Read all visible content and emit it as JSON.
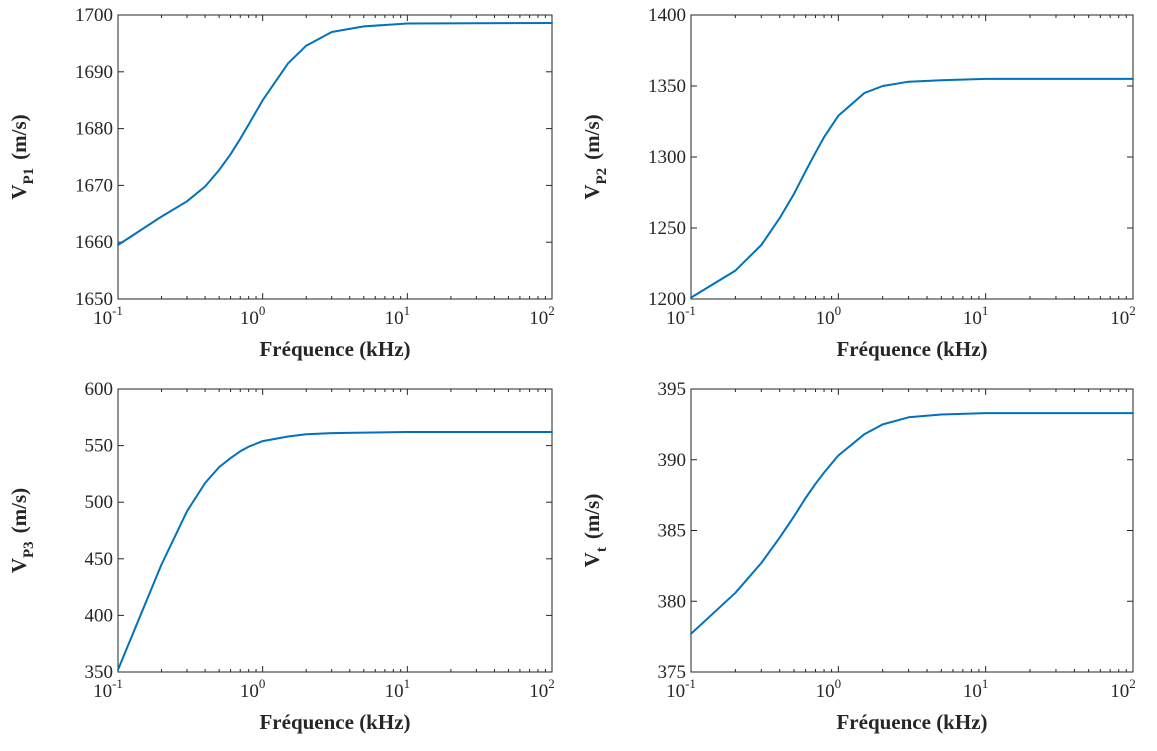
{
  "chart_data": [
    {
      "type": "line",
      "title": "",
      "xlabel": "Fréquence (kHz)",
      "ylabel": {
        "main": "V",
        "sub": "P1",
        "unit": "(m/s)"
      },
      "xscale": "log",
      "xlim": [
        0.1,
        100
      ],
      "ylim": [
        1650,
        1700
      ],
      "xticks": [
        {
          "base": "10",
          "exp": "-1"
        },
        {
          "base": "10",
          "exp": "0"
        },
        {
          "base": "10",
          "exp": "1"
        },
        {
          "base": "10",
          "exp": "2"
        }
      ],
      "yticks": [
        "1650",
        "1660",
        "1670",
        "1680",
        "1690",
        "1700"
      ],
      "grid": false,
      "series": [
        {
          "color": "#0072BD",
          "x": [
            0.1,
            0.2,
            0.3,
            0.4,
            0.5,
            0.6,
            0.7,
            0.8,
            1,
            1.5,
            2,
            3,
            5,
            10,
            100
          ],
          "y": [
            1659.5,
            1664.5,
            1667.2,
            1669.8,
            1672.7,
            1675.5,
            1678.2,
            1680.7,
            1685,
            1691.5,
            1694.6,
            1697,
            1698,
            1698.5,
            1698.6
          ]
        }
      ]
    },
    {
      "type": "line",
      "title": "",
      "xlabel": "Fréquence (kHz)",
      "ylabel": {
        "main": "V",
        "sub": "P2",
        "unit": "(m/s)"
      },
      "xscale": "log",
      "xlim": [
        0.1,
        100
      ],
      "ylim": [
        1200,
        1400
      ],
      "xticks": [
        {
          "base": "10",
          "exp": "-1"
        },
        {
          "base": "10",
          "exp": "0"
        },
        {
          "base": "10",
          "exp": "1"
        },
        {
          "base": "10",
          "exp": "2"
        }
      ],
      "yticks": [
        "1200",
        "1250",
        "1300",
        "1350",
        "1400"
      ],
      "grid": false,
      "series": [
        {
          "color": "#0072BD",
          "x": [
            0.1,
            0.2,
            0.3,
            0.4,
            0.5,
            0.6,
            0.7,
            0.8,
            1,
            1.5,
            2,
            3,
            5,
            10,
            100
          ],
          "y": [
            1201,
            1220,
            1238,
            1257,
            1274,
            1290,
            1303,
            1314,
            1329,
            1345,
            1350,
            1353,
            1354,
            1355,
            1355
          ]
        }
      ]
    },
    {
      "type": "line",
      "title": "",
      "xlabel": "Fréquence (kHz)",
      "ylabel": {
        "main": "V",
        "sub": "P3",
        "unit": "(m/s)"
      },
      "xscale": "log",
      "xlim": [
        0.1,
        100
      ],
      "ylim": [
        350,
        600
      ],
      "xticks": [
        {
          "base": "10",
          "exp": "-1"
        },
        {
          "base": "10",
          "exp": "0"
        },
        {
          "base": "10",
          "exp": "1"
        },
        {
          "base": "10",
          "exp": "2"
        }
      ],
      "yticks": [
        "350",
        "400",
        "450",
        "500",
        "550",
        "600"
      ],
      "grid": false,
      "series": [
        {
          "color": "#0072BD",
          "x": [
            0.1,
            0.2,
            0.3,
            0.4,
            0.5,
            0.6,
            0.7,
            0.8,
            1,
            1.5,
            2,
            3,
            5,
            10,
            100
          ],
          "y": [
            352,
            445,
            492,
            517,
            531,
            539,
            545,
            549,
            554,
            558,
            560,
            561,
            561.5,
            562,
            562
          ]
        }
      ]
    },
    {
      "type": "line",
      "title": "",
      "xlabel": "Fréquence (kHz)",
      "ylabel": {
        "main": "V",
        "sub": "t",
        "unit": "(m/s)"
      },
      "xscale": "log",
      "xlim": [
        0.1,
        100
      ],
      "ylim": [
        375,
        395
      ],
      "xticks": [
        {
          "base": "10",
          "exp": "-1"
        },
        {
          "base": "10",
          "exp": "0"
        },
        {
          "base": "10",
          "exp": "1"
        },
        {
          "base": "10",
          "exp": "2"
        }
      ],
      "yticks": [
        "375",
        "380",
        "385",
        "390",
        "395"
      ],
      "grid": false,
      "series": [
        {
          "color": "#0072BD",
          "x": [
            0.1,
            0.2,
            0.3,
            0.4,
            0.5,
            0.6,
            0.7,
            0.8,
            1,
            1.5,
            2,
            3,
            5,
            10,
            100
          ],
          "y": [
            377.7,
            380.6,
            382.7,
            384.5,
            386,
            387.3,
            388.3,
            389.1,
            390.3,
            391.8,
            392.5,
            393,
            393.2,
            393.3,
            393.3
          ]
        }
      ]
    }
  ]
}
